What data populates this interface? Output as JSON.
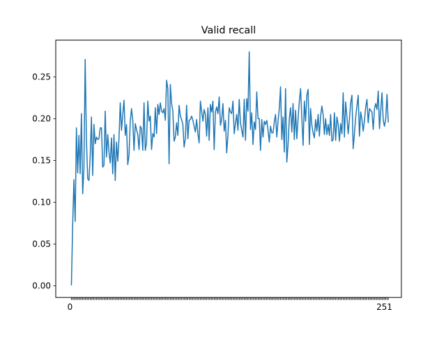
{
  "chart_data": {
    "type": "line",
    "title": "Valid recall",
    "xlabel": "",
    "ylabel": "",
    "x_start": 0,
    "x_end": 251,
    "xlim": [
      -12.5,
      263.5
    ],
    "ylim": [
      -0.014,
      0.294
    ],
    "yticks": [
      0.0,
      0.05,
      0.1,
      0.15,
      0.2,
      0.25
    ],
    "ytick_labels": [
      "0.00",
      "0.05",
      "0.10",
      "0.15",
      "0.20",
      "0.25"
    ],
    "xticks_first_label": "0",
    "xticks_last_label": "251",
    "grid": false,
    "legend": "none",
    "line_color": "#1f77b4",
    "series": [
      {
        "values": [
          0.001,
          0.072,
          0.127,
          0.077,
          0.189,
          0.135,
          0.18,
          0.134,
          0.206,
          0.11,
          0.14,
          0.271,
          0.175,
          0.128,
          0.126,
          0.155,
          0.202,
          0.132,
          0.193,
          0.17,
          0.178,
          0.175,
          0.176,
          0.189,
          0.189,
          0.142,
          0.144,
          0.209,
          0.154,
          0.181,
          0.16,
          0.147,
          0.177,
          0.134,
          0.181,
          0.126,
          0.172,
          0.149,
          0.176,
          0.219,
          0.186,
          0.205,
          0.222,
          0.18,
          0.193,
          0.145,
          0.156,
          0.197,
          0.212,
          0.198,
          0.162,
          0.194,
          0.187,
          0.181,
          0.163,
          0.191,
          0.188,
          0.162,
          0.219,
          0.162,
          0.171,
          0.221,
          0.197,
          0.203,
          0.163,
          0.182,
          0.178,
          0.213,
          0.182,
          0.217,
          0.205,
          0.219,
          0.209,
          0.207,
          0.212,
          0.198,
          0.246,
          0.236,
          0.146,
          0.241,
          0.218,
          0.209,
          0.173,
          0.178,
          0.195,
          0.18,
          0.216,
          0.203,
          0.199,
          0.193,
          0.166,
          0.176,
          0.216,
          0.176,
          0.198,
          0.199,
          0.203,
          0.198,
          0.191,
          0.184,
          0.199,
          0.182,
          0.171,
          0.221,
          0.209,
          0.197,
          0.211,
          0.205,
          0.179,
          0.213,
          0.174,
          0.217,
          0.208,
          0.221,
          0.163,
          0.208,
          0.214,
          0.206,
          0.226,
          0.192,
          0.199,
          0.218,
          0.185,
          0.198,
          0.159,
          0.18,
          0.213,
          0.208,
          0.206,
          0.221,
          0.182,
          0.194,
          0.205,
          0.186,
          0.223,
          0.195,
          0.186,
          0.178,
          0.223,
          0.174,
          0.224,
          0.209,
          0.28,
          0.187,
          0.207,
          0.169,
          0.196,
          0.187,
          0.232,
          0.2,
          0.2,
          0.162,
          0.199,
          0.178,
          0.197,
          0.193,
          0.198,
          0.186,
          0.172,
          0.191,
          0.183,
          0.183,
          0.196,
          0.205,
          0.178,
          0.197,
          0.212,
          0.238,
          0.175,
          0.202,
          0.16,
          0.236,
          0.148,
          0.169,
          0.2,
          0.213,
          0.184,
          0.218,
          0.175,
          0.21,
          0.176,
          0.2,
          0.221,
          0.236,
          0.201,
          0.168,
          0.221,
          0.197,
          0.228,
          0.235,
          0.169,
          0.212,
          0.192,
          0.183,
          0.177,
          0.199,
          0.185,
          0.205,
          0.179,
          0.203,
          0.215,
          0.205,
          0.181,
          0.2,
          0.181,
          0.193,
          0.18,
          0.205,
          0.173,
          0.175,
          0.207,
          0.174,
          0.202,
          0.193,
          0.173,
          0.194,
          0.182,
          0.231,
          0.178,
          0.22,
          0.202,
          0.182,
          0.199,
          0.219,
          0.228,
          0.164,
          0.182,
          0.202,
          0.215,
          0.228,
          0.179,
          0.208,
          0.199,
          0.185,
          0.198,
          0.214,
          0.223,
          0.195,
          0.212,
          0.21,
          0.208,
          0.187,
          0.212,
          0.218,
          0.211,
          0.233,
          0.188,
          0.21,
          0.231,
          0.198,
          0.191,
          0.2,
          0.229,
          0.196
        ]
      }
    ]
  }
}
